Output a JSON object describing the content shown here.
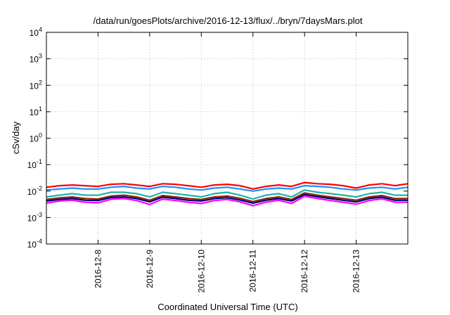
{
  "chart_data": {
    "type": "line",
    "title": "/data/run/goesPlots/archive/2016-12-13/flux/../bryn/7daysMars.plot",
    "xlabel": "Coordinated Universal Time (UTC)",
    "ylabel": "cSv/day",
    "y_scale": "log",
    "ylim": [
      0.0001,
      10000
    ],
    "xlim": [
      "2016-12-07 00:00",
      "2016-12-14 00:00"
    ],
    "y_ticks": [
      {
        "base": "10",
        "exp": "-4"
      },
      {
        "base": "10",
        "exp": "-3"
      },
      {
        "base": "10",
        "exp": "-2"
      },
      {
        "base": "10",
        "exp": "-1"
      },
      {
        "base": "10",
        "exp": "0"
      },
      {
        "base": "10",
        "exp": "1"
      },
      {
        "base": "10",
        "exp": "2"
      },
      {
        "base": "10",
        "exp": "3"
      },
      {
        "base": "10",
        "exp": "4"
      }
    ],
    "x_ticks": [
      "2016-12-8",
      "2016-12-9",
      "2016-12-10",
      "2016-12-11",
      "2016-12-12",
      "2016-12-13"
    ],
    "grid": true,
    "x": [
      "2016-12-07 00:00",
      "2016-12-07 06:00",
      "2016-12-07 12:00",
      "2016-12-07 18:00",
      "2016-12-08 00:00",
      "2016-12-08 06:00",
      "2016-12-08 12:00",
      "2016-12-08 18:00",
      "2016-12-09 00:00",
      "2016-12-09 06:00",
      "2016-12-09 12:00",
      "2016-12-09 18:00",
      "2016-12-10 00:00",
      "2016-12-10 06:00",
      "2016-12-10 12:00",
      "2016-12-10 18:00",
      "2016-12-11 00:00",
      "2016-12-11 06:00",
      "2016-12-11 12:00",
      "2016-12-11 18:00",
      "2016-12-12 00:00",
      "2016-12-12 06:00",
      "2016-12-12 12:00",
      "2016-12-12 18:00",
      "2016-12-13 00:00",
      "2016-12-13 06:00",
      "2016-12-13 12:00",
      "2016-12-13 18:00",
      "2016-12-14 00:00"
    ],
    "series": [
      {
        "color": "#ff0000",
        "values": [
          0.014,
          0.016,
          0.017,
          0.016,
          0.015,
          0.018,
          0.019,
          0.017,
          0.015,
          0.019,
          0.018,
          0.016,
          0.014,
          0.017,
          0.018,
          0.016,
          0.012,
          0.015,
          0.017,
          0.015,
          0.021,
          0.019,
          0.018,
          0.016,
          0.013,
          0.017,
          0.019,
          0.016,
          0.019
        ]
      },
      {
        "color": "#1e90ff",
        "values": [
          0.011,
          0.012,
          0.013,
          0.012,
          0.012,
          0.014,
          0.015,
          0.013,
          0.012,
          0.015,
          0.014,
          0.012,
          0.011,
          0.013,
          0.014,
          0.012,
          0.01,
          0.012,
          0.013,
          0.012,
          0.016,
          0.015,
          0.014,
          0.012,
          0.011,
          0.013,
          0.014,
          0.012,
          0.014
        ]
      },
      {
        "color": "#20b2aa",
        "values": [
          0.006,
          0.007,
          0.008,
          0.007,
          0.007,
          0.009,
          0.009,
          0.008,
          0.006,
          0.009,
          0.008,
          0.007,
          0.006,
          0.008,
          0.009,
          0.007,
          0.005,
          0.007,
          0.008,
          0.006,
          0.011,
          0.009,
          0.008,
          0.007,
          0.006,
          0.008,
          0.009,
          0.007,
          0.007
        ]
      },
      {
        "color": "#8b2500",
        "values": [
          0.0048,
          0.0055,
          0.006,
          0.0052,
          0.005,
          0.0065,
          0.007,
          0.006,
          0.0045,
          0.0068,
          0.006,
          0.0052,
          0.0048,
          0.006,
          0.0065,
          0.0053,
          0.004,
          0.0052,
          0.006,
          0.0048,
          0.0085,
          0.007,
          0.006,
          0.0052,
          0.0045,
          0.006,
          0.0068,
          0.0052,
          0.0052
        ]
      },
      {
        "color": "#000080",
        "values": [
          0.0042,
          0.0048,
          0.0052,
          0.0045,
          0.0044,
          0.0057,
          0.006,
          0.0052,
          0.0039,
          0.0059,
          0.0052,
          0.0045,
          0.0042,
          0.0052,
          0.0056,
          0.0046,
          0.0035,
          0.0045,
          0.0052,
          0.0042,
          0.0074,
          0.0061,
          0.0052,
          0.0045,
          0.0039,
          0.0052,
          0.0059,
          0.0045,
          0.0045
        ]
      },
      {
        "color": "#ff00ff",
        "values": [
          0.0035,
          0.0042,
          0.0045,
          0.0038,
          0.0036,
          0.0049,
          0.0052,
          0.0044,
          0.0031,
          0.005,
          0.0044,
          0.0038,
          0.0034,
          0.0044,
          0.0048,
          0.0039,
          0.0028,
          0.0038,
          0.0045,
          0.0034,
          0.0064,
          0.0052,
          0.0044,
          0.0038,
          0.0032,
          0.0044,
          0.0051,
          0.0038,
          0.0038
        ]
      }
    ]
  }
}
